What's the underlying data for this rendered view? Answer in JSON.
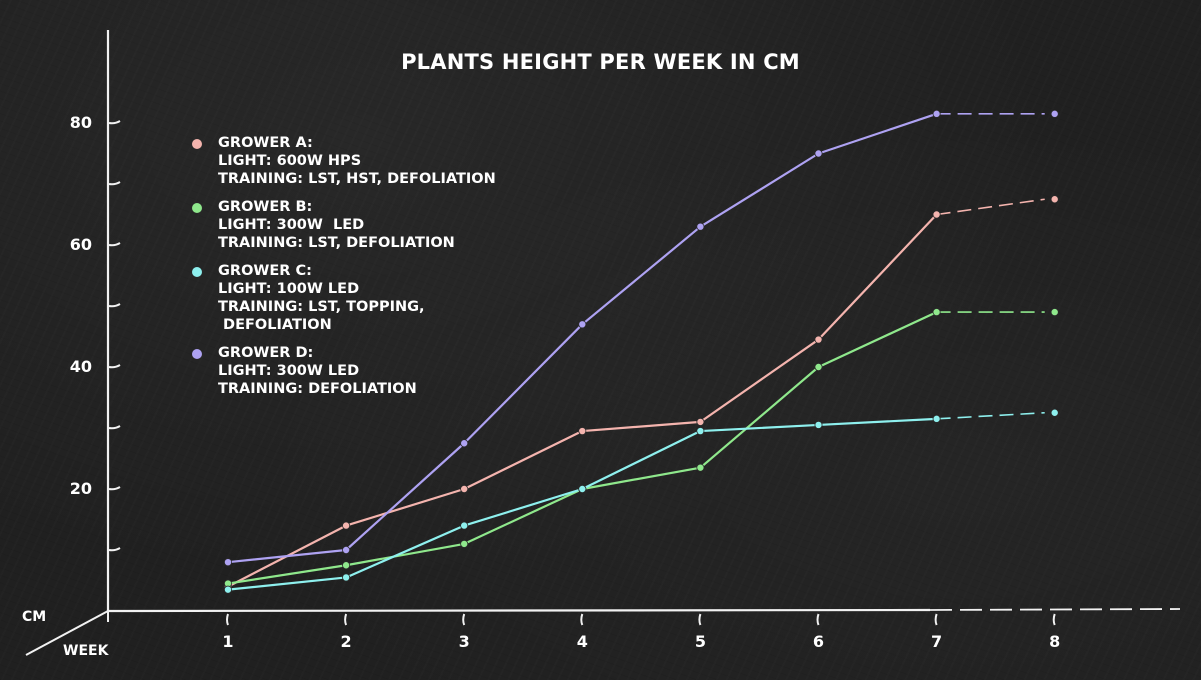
{
  "chart_data": {
    "type": "line",
    "title": "PLANTS HEIGHT PER WEEK IN CM",
    "xlabel": "WEEK",
    "ylabel": "CM",
    "x": [
      1,
      2,
      3,
      4,
      5,
      6,
      7,
      8
    ],
    "yticks": [
      20,
      40,
      60,
      80
    ],
    "ylim": [
      0,
      88
    ],
    "xlim": [
      0,
      8.5
    ],
    "grid": false,
    "legend_position": "upper-left",
    "series": [
      {
        "name": "GROWER A",
        "color": "#f4b4ae",
        "values": [
          4,
          14,
          20,
          29.5,
          31,
          44.5,
          65,
          67.5
        ],
        "legend_lines": [
          "GROWER A:",
          "LIGHT: 600W HPS",
          "TRAINING: LST, HST, DEFOLIATION"
        ]
      },
      {
        "name": "GROWER B",
        "color": "#8fe88c",
        "values": [
          4.5,
          7.5,
          11,
          20,
          23.5,
          40,
          49,
          49
        ],
        "legend_lines": [
          "GROWER B:",
          "LIGHT: 300W  LED",
          "TRAINING: LST, DEFOLIATION"
        ]
      },
      {
        "name": "GROWER C",
        "color": "#8ef0ee",
        "values": [
          3.5,
          5.5,
          14,
          20,
          29.5,
          30.5,
          31.5,
          32.5
        ],
        "legend_lines": [
          "GROWER C:",
          "LIGHT: 100W LED",
          "TRAINING: LST, TOPPING,",
          " DEFOLIATION"
        ]
      },
      {
        "name": "GROWER D",
        "color": "#aea2f2",
        "values": [
          8,
          10,
          27.5,
          47,
          63,
          75,
          81.5,
          81.5
        ],
        "legend_lines": [
          "GROWER D:",
          "LIGHT: 300W LED",
          "TRAINING: DEFOLIATION"
        ]
      }
    ],
    "annotations": [
      "Segment from week 7 to week 8 drawn dashed (projected)"
    ]
  },
  "labels": {
    "title": "PLANTS HEIGHT PER WEEK IN CM",
    "y_axis_unit": "CM",
    "x_axis_unit": "WEEK",
    "yticks": [
      "20",
      "40",
      "60",
      "80"
    ],
    "xticks": [
      "1",
      "2",
      "3",
      "4",
      "5",
      "6",
      "7",
      "8"
    ]
  },
  "colors": {
    "background": "#202020",
    "axis": "#f2f2f2",
    "text": "#ffffff"
  }
}
